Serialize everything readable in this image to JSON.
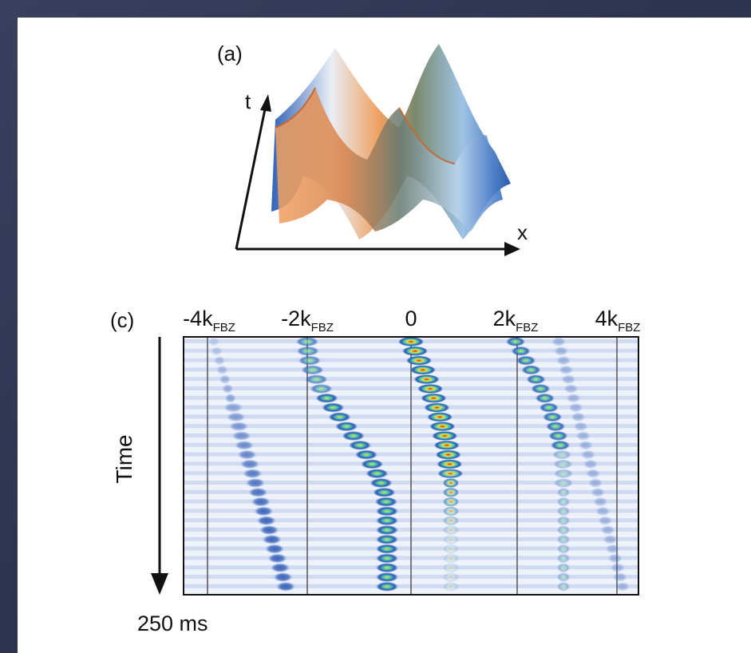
{
  "panel_a": {
    "label": "(a)",
    "axis_t": "t",
    "axis_x": "x"
  },
  "panel_c": {
    "label": "(c)",
    "momentum_labels": [
      {
        "base": "-4k",
        "sub": "FBZ"
      },
      {
        "base": "-2k",
        "sub": "FBZ"
      },
      {
        "base": "0"
      },
      {
        "base": "2k",
        "sub": "FBZ"
      },
      {
        "base": "4k",
        "sub": "FBZ"
      }
    ],
    "time_label": "Time",
    "end_time": "250 ms"
  }
}
